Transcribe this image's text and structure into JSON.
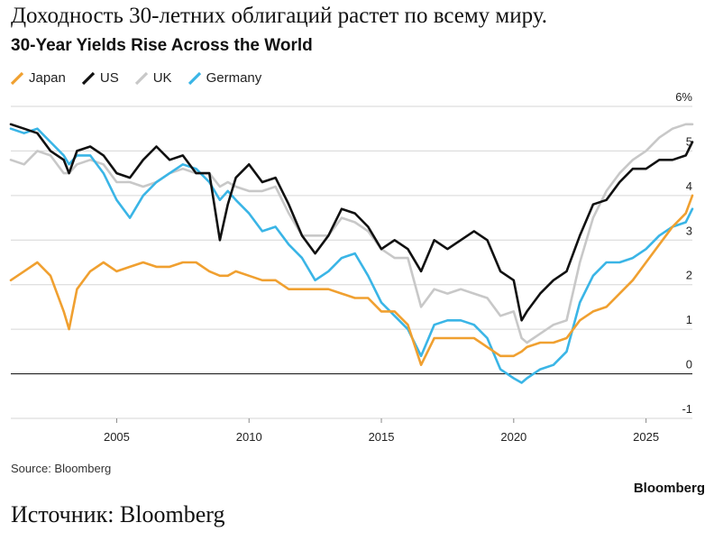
{
  "headline": "Доходность 30-летних облигаций растет по всему миру.",
  "footer": "Источник: Bloomberg",
  "brand": "Bloomberg",
  "chart_data": {
    "type": "line",
    "title": "30-Year Yields Rise Across the World",
    "source": "Source: Bloomberg",
    "ylim": [
      -1,
      6
    ],
    "xlim": [
      2001.0,
      2026.75
    ],
    "yticks": [
      -1,
      0,
      1,
      2,
      3,
      4,
      5,
      6
    ],
    "ytick_labels": [
      "-1",
      "0",
      "1",
      "2",
      "3",
      "4",
      "5",
      "6%"
    ],
    "xticks": [
      2005,
      2010,
      2015,
      2020,
      2025
    ],
    "xtick_labels": [
      "2005",
      "2010",
      "2015",
      "2020",
      "2025"
    ],
    "grid": true,
    "legend_position": "top-left",
    "x": [
      2001.0,
      2001.5,
      2002.0,
      2002.5,
      2003.0,
      2003.2,
      2003.5,
      2004.0,
      2004.5,
      2005.0,
      2005.5,
      2006.0,
      2006.5,
      2007.0,
      2007.5,
      2008.0,
      2008.5,
      2008.9,
      2009.2,
      2009.5,
      2010.0,
      2010.5,
      2011.0,
      2011.5,
      2012.0,
      2012.5,
      2013.0,
      2013.5,
      2014.0,
      2014.5,
      2015.0,
      2015.5,
      2016.0,
      2016.5,
      2017.0,
      2017.5,
      2018.0,
      2018.5,
      2019.0,
      2019.5,
      2020.0,
      2020.3,
      2020.5,
      2021.0,
      2021.5,
      2022.0,
      2022.5,
      2023.0,
      2023.5,
      2024.0,
      2024.5,
      2025.0,
      2025.5,
      2026.0,
      2026.5,
      2026.75
    ],
    "series": [
      {
        "name": "Japan",
        "color": "#f0a030",
        "values": [
          2.1,
          2.3,
          2.5,
          2.2,
          1.4,
          1.0,
          1.9,
          2.3,
          2.5,
          2.3,
          2.4,
          2.5,
          2.4,
          2.4,
          2.5,
          2.5,
          2.3,
          2.2,
          2.2,
          2.3,
          2.2,
          2.1,
          2.1,
          1.9,
          1.9,
          1.9,
          1.9,
          1.8,
          1.7,
          1.7,
          1.4,
          1.4,
          1.1,
          0.2,
          0.8,
          0.8,
          0.8,
          0.8,
          0.6,
          0.4,
          0.4,
          0.5,
          0.6,
          0.7,
          0.7,
          0.8,
          1.2,
          1.4,
          1.5,
          1.8,
          2.1,
          2.5,
          2.9,
          3.3,
          3.6,
          4.0
        ]
      },
      {
        "name": "US",
        "color": "#111111",
        "values": [
          5.6,
          5.5,
          5.4,
          5.0,
          4.8,
          4.5,
          5.0,
          5.1,
          4.9,
          4.5,
          4.4,
          4.8,
          5.1,
          4.8,
          4.9,
          4.5,
          4.5,
          3.0,
          3.8,
          4.4,
          4.7,
          4.3,
          4.4,
          3.8,
          3.1,
          2.7,
          3.1,
          3.7,
          3.6,
          3.3,
          2.8,
          3.0,
          2.8,
          2.3,
          3.0,
          2.8,
          3.0,
          3.2,
          3.0,
          2.3,
          2.1,
          1.2,
          1.4,
          1.8,
          2.1,
          2.3,
          3.1,
          3.8,
          3.9,
          4.3,
          4.6,
          4.6,
          4.8,
          4.8,
          4.9,
          5.2
        ]
      },
      {
        "name": "UK",
        "color": "#c8c8c8",
        "values": [
          4.8,
          4.7,
          5.0,
          4.9,
          4.5,
          4.5,
          4.7,
          4.8,
          4.7,
          4.3,
          4.3,
          4.2,
          4.3,
          4.5,
          4.6,
          4.5,
          4.5,
          4.2,
          4.3,
          4.2,
          4.1,
          4.1,
          4.2,
          3.6,
          3.1,
          3.1,
          3.1,
          3.5,
          3.4,
          3.2,
          2.8,
          2.6,
          2.6,
          1.5,
          1.9,
          1.8,
          1.9,
          1.8,
          1.7,
          1.3,
          1.4,
          0.8,
          0.7,
          0.9,
          1.1,
          1.2,
          2.5,
          3.5,
          4.1,
          4.5,
          4.8,
          5.0,
          5.3,
          5.5,
          5.6,
          5.6
        ]
      },
      {
        "name": "Germany",
        "color": "#3ab5e6",
        "values": [
          5.5,
          5.4,
          5.5,
          5.2,
          4.9,
          4.7,
          4.9,
          4.9,
          4.5,
          3.9,
          3.5,
          4.0,
          4.3,
          4.5,
          4.7,
          4.6,
          4.3,
          3.9,
          4.1,
          3.9,
          3.6,
          3.2,
          3.3,
          2.9,
          2.6,
          2.1,
          2.3,
          2.6,
          2.7,
          2.2,
          1.6,
          1.3,
          1.0,
          0.4,
          1.1,
          1.2,
          1.2,
          1.1,
          0.8,
          0.1,
          -0.1,
          -0.2,
          -0.1,
          0.1,
          0.2,
          0.5,
          1.6,
          2.2,
          2.5,
          2.5,
          2.6,
          2.8,
          3.1,
          3.3,
          3.4,
          3.7
        ]
      }
    ]
  }
}
